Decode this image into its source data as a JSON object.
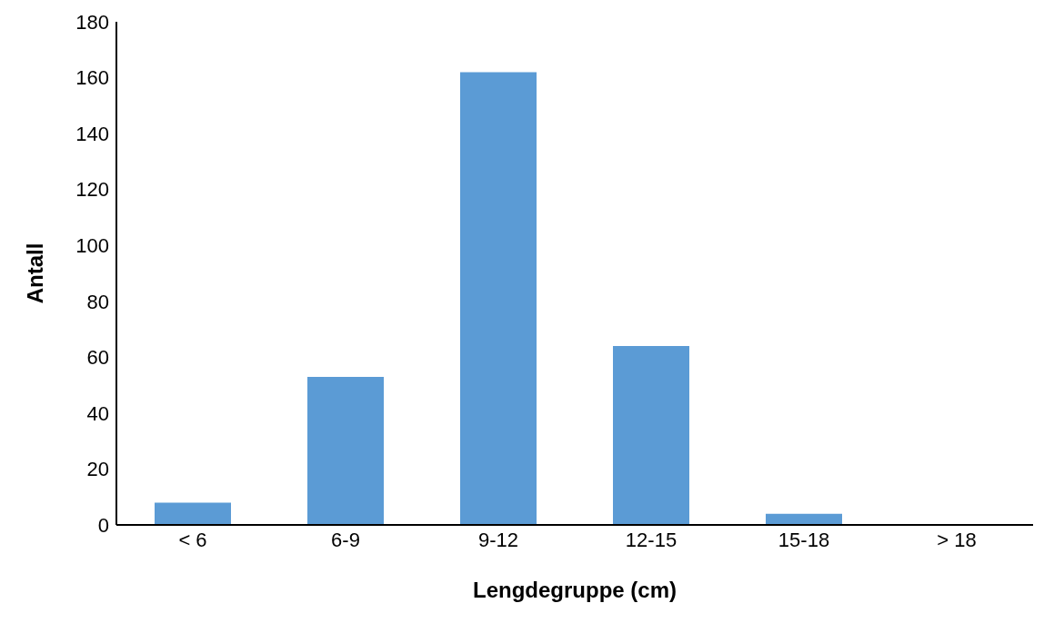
{
  "chart_data": {
    "type": "bar",
    "xlabel": "Lengdegruppe (cm)",
    "ylabel": "Antall",
    "categories": [
      "< 6",
      "6-9",
      "9-12",
      "12-15",
      "15-18",
      "> 18"
    ],
    "values": [
      8,
      53,
      162,
      64,
      4,
      0
    ],
    "color": "#5b9bd5",
    "ylim": [
      0,
      180
    ],
    "yticks": [
      0,
      20,
      40,
      60,
      80,
      100,
      120,
      140,
      160,
      180
    ],
    "grid": false
  }
}
